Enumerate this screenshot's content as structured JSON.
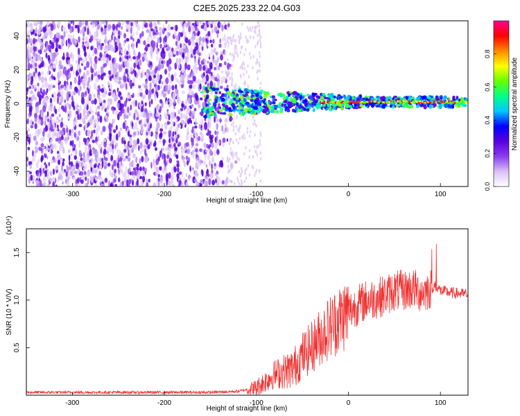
{
  "title": "C2E5.2025.233.22.04.G03",
  "chart_data": [
    {
      "type": "heatmap",
      "title": "C2E5.2025.233.22.04.G03",
      "xlabel": "Height of straight line (km)",
      "ylabel": "Frequency (Hz)",
      "xlim": [
        -350,
        130
      ],
      "ylim": [
        -49,
        49
      ],
      "xticks": [
        -300,
        -200,
        -100,
        0,
        100
      ],
      "xtick_labels": [
        "-300",
        "-200",
        "-100",
        "0",
        "100"
      ],
      "yticks": [
        -40,
        -20,
        0,
        20,
        40
      ],
      "ytick_labels": [
        "-40",
        "-20",
        "0",
        "20",
        "40"
      ],
      "grid": false,
      "noise_region_x": [
        -350,
        -120
      ],
      "signal_band_center_hz": 1,
      "signal_band_halfwidth_hz": [
        9,
        3
      ],
      "colorbar": {
        "label": "Normalized spectral amplitude",
        "range": [
          0,
          1
        ],
        "ticks": [
          0.0,
          0.2,
          0.4,
          0.6,
          0.8
        ],
        "tick_labels": [
          "0.0",
          "0.2",
          "0.4",
          "0.6",
          "0.8"
        ],
        "colormap": [
          "#ffffff",
          "#d9c0f5",
          "#8a3df0",
          "#5a00e0",
          "#0000ff",
          "#00c8ff",
          "#00ff88",
          "#66ff00",
          "#ffff00",
          "#ff8800",
          "#ff0000",
          "#ff0090"
        ]
      }
    },
    {
      "type": "line",
      "xlabel": "Height of straight line (km)",
      "ylabel": "SNR (10 * V/V)",
      "y_scale_label": "(x10⁴)",
      "xlim": [
        -350,
        130
      ],
      "ylim": [
        0,
        1.75
      ],
      "xticks": [
        -300,
        -200,
        -100,
        0,
        100
      ],
      "xtick_labels": [
        "-300",
        "-200",
        "-100",
        "0",
        "100"
      ],
      "yticks": [
        0.5,
        1.0,
        1.5
      ],
      "ytick_labels": [
        "0.5",
        "1.0",
        "1.5"
      ],
      "grid": false,
      "series": [
        {
          "name": "SNR",
          "color": "#ee3333",
          "x": [
            -350,
            -300,
            -250,
            -200,
            -150,
            -120,
            -100,
            -90,
            -80,
            -70,
            -60,
            -50,
            -40,
            -30,
            -20,
            -10,
            0,
            10,
            20,
            30,
            40,
            50,
            60,
            70,
            80,
            90,
            95,
            100,
            110,
            120,
            130
          ],
          "y": [
            0.03,
            0.03,
            0.03,
            0.03,
            0.03,
            0.04,
            0.08,
            0.15,
            0.22,
            0.25,
            0.28,
            0.42,
            0.5,
            0.62,
            0.72,
            0.8,
            0.88,
            0.95,
            1.0,
            1.02,
            1.05,
            1.1,
            1.1,
            1.12,
            1.08,
            1.12,
            1.15,
            1.1,
            1.08,
            1.07,
            1.06
          ]
        }
      ]
    }
  ]
}
